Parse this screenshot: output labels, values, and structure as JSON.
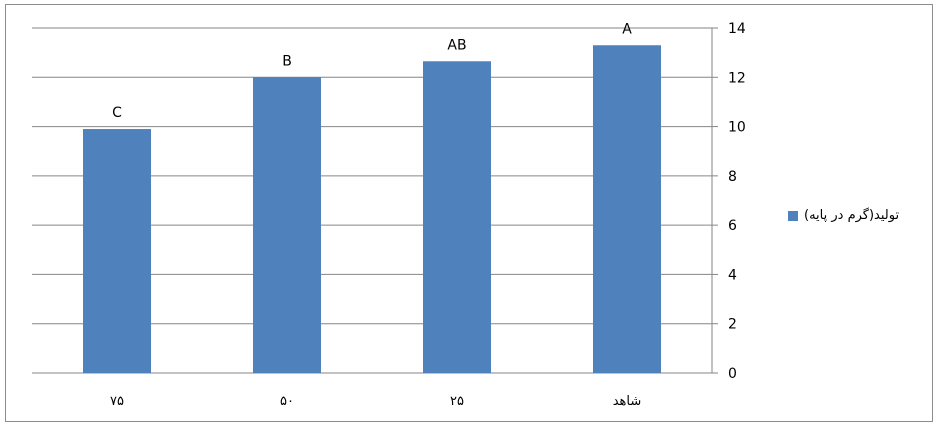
{
  "chart_data": {
    "type": "bar",
    "categories": [
      "۷۵",
      "۵۰",
      "۲۵",
      "شاهد"
    ],
    "values": [
      9.9,
      12.0,
      12.65,
      13.3
    ],
    "data_labels": [
      "C",
      "B",
      "AB",
      "A"
    ],
    "series": [
      {
        "name": "تولید(گرم در پایه)",
        "values": [
          9.9,
          12.0,
          12.65,
          13.3
        ]
      }
    ],
    "yticks": [
      "0",
      "2",
      "4",
      "6",
      "8",
      "10",
      "12",
      "14"
    ],
    "ylim": [
      0,
      14
    ],
    "yaxis_position": "right",
    "grid": true,
    "legend_position": "right",
    "colors": {
      "bar": "#4f81bd",
      "grid": "#868686"
    }
  }
}
